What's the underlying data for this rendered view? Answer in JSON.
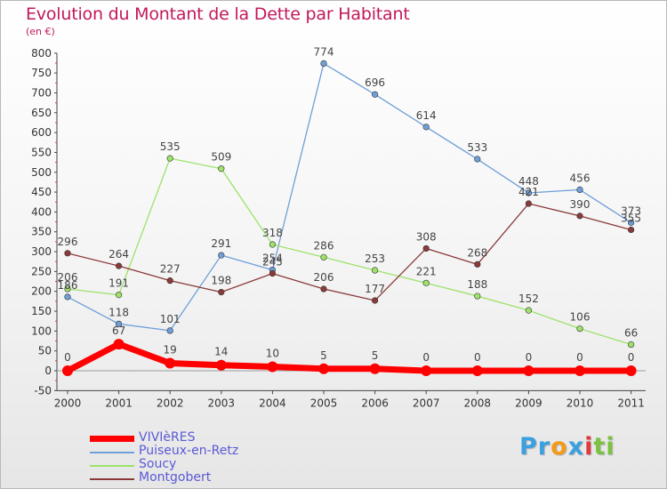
{
  "chart_data": {
    "type": "line",
    "title": "Evolution du Montant de la Dette par Habitant",
    "subtitle": "(en €)",
    "categories": [
      "2000",
      "2001",
      "2002",
      "2003",
      "2004",
      "2005",
      "2006",
      "2007",
      "2008",
      "2009",
      "2010",
      "2011"
    ],
    "ylim": [
      -50,
      800
    ],
    "yticks": [
      "-50",
      "0",
      "50",
      "100",
      "150",
      "200",
      "250",
      "300",
      "350",
      "400",
      "450",
      "500",
      "550",
      "600",
      "650",
      "700",
      "750",
      "800"
    ],
    "legend_position": "bottom-left",
    "grid": false,
    "series": [
      {
        "name": "VIVIèRES",
        "color": "#ff0000",
        "values": [
          0,
          67,
          19,
          14,
          10,
          5,
          5,
          0,
          0,
          0,
          0,
          0
        ],
        "labels": [
          "0",
          "67",
          "19",
          "14",
          "10",
          "5",
          "5",
          "0",
          "0",
          "0",
          "0",
          "0"
        ]
      },
      {
        "name": "Puiseux-en-Retz",
        "color": "#6f9fd8",
        "values": [
          186,
          118,
          101,
          291,
          254,
          774,
          696,
          614,
          533,
          448,
          456,
          373
        ],
        "labels": [
          "186",
          "118",
          "101",
          "291",
          "254",
          "774",
          "696",
          "614",
          "533",
          "448",
          "456",
          "373"
        ]
      },
      {
        "name": "Soucy",
        "color": "#9ee26b",
        "values": [
          206,
          191,
          535,
          509,
          318,
          286,
          253,
          221,
          188,
          152,
          106,
          66
        ],
        "labels": [
          "206",
          "191",
          "535",
          "509",
          "318",
          "286",
          "253",
          "221",
          "188",
          "152",
          "106",
          "66"
        ]
      },
      {
        "name": "Montgobert",
        "color": "#8b3a3a",
        "values": [
          296,
          264,
          227,
          198,
          245,
          206,
          177,
          308,
          268,
          421,
          390,
          355
        ],
        "labels": [
          "296",
          "264",
          "227",
          "198",
          "245",
          "206",
          "177",
          "308",
          "268",
          "421",
          "390",
          "355"
        ]
      }
    ]
  },
  "logo": {
    "text": "Proxiti",
    "letters": [
      "P",
      "r",
      "o",
      "x",
      "i",
      "t",
      "i"
    ],
    "colors": [
      "#3aa0e0",
      "#3aa0e0",
      "#f29a1a",
      "#3aa0e0",
      "#e03a3a",
      "#7cc242",
      "#7cc242"
    ]
  }
}
